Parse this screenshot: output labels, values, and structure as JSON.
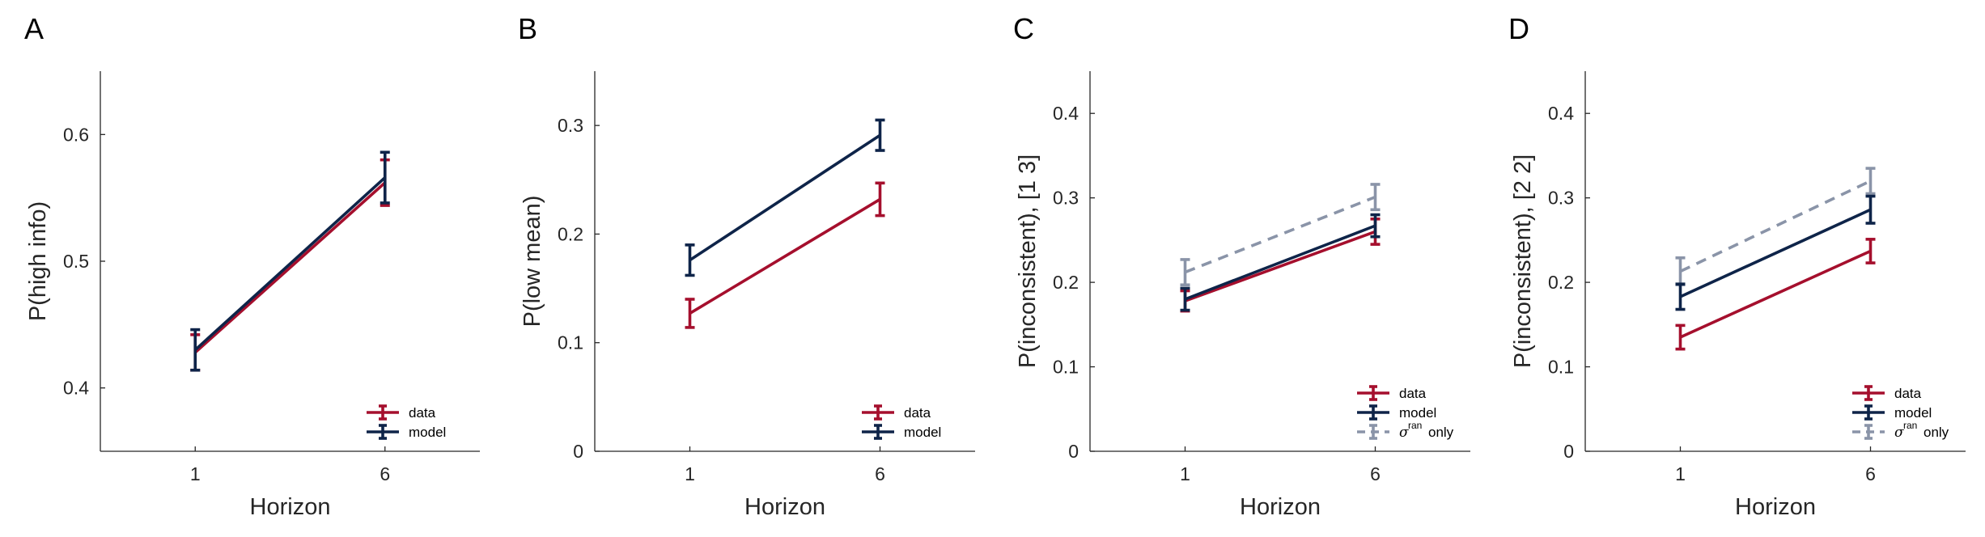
{
  "colors": {
    "data": "#A50F2D",
    "model": "#0E2449",
    "sigma_ran_only": "#8A94A8",
    "axis": "#262626"
  },
  "chart_data": [
    {
      "panel": "A",
      "type": "line",
      "xlabel": "Horizon",
      "ylabel": "P(high info)",
      "x": [
        1,
        6
      ],
      "xlim": [
        -1.5,
        8.5
      ],
      "ylim": [
        0.35,
        0.65
      ],
      "yticks": [
        "0.4",
        "0.5",
        "0.6"
      ],
      "series": [
        {
          "key": "data",
          "name": "data",
          "values": [
            0.428,
            0.562
          ],
          "err": [
            0.014,
            0.018
          ],
          "dashed": false
        },
        {
          "key": "model",
          "name": "model",
          "values": [
            0.43,
            0.566
          ],
          "err": [
            0.016,
            0.02
          ],
          "dashed": false
        }
      ],
      "legend": "bottom-right",
      "grid": false
    },
    {
      "panel": "B",
      "type": "line",
      "xlabel": "Horizon",
      "ylabel": "P(low mean)",
      "x": [
        1,
        6
      ],
      "xlim": [
        -1.5,
        8.5
      ],
      "ylim": [
        0,
        0.35
      ],
      "yticks": [
        "0",
        "0.1",
        "0.2",
        "0.3"
      ],
      "series": [
        {
          "key": "data",
          "name": "data",
          "values": [
            0.127,
            0.232
          ],
          "err": [
            0.013,
            0.015
          ],
          "dashed": false
        },
        {
          "key": "model",
          "name": "model",
          "values": [
            0.176,
            0.291
          ],
          "err": [
            0.014,
            0.014
          ],
          "dashed": false
        }
      ],
      "legend": "bottom-right",
      "grid": false
    },
    {
      "panel": "C",
      "type": "line",
      "xlabel": "Horizon",
      "ylabel": "P(inconsistent), [1 3]",
      "x": [
        1,
        6
      ],
      "xlim": [
        -1.5,
        8.5
      ],
      "ylim": [
        0,
        0.45
      ],
      "yticks": [
        "0",
        "0.1",
        "0.2",
        "0.3",
        "0.4"
      ],
      "series": [
        {
          "key": "data",
          "name": "data",
          "values": [
            0.178,
            0.26
          ],
          "err": [
            0.012,
            0.015
          ],
          "dashed": false
        },
        {
          "key": "model",
          "name": "model",
          "values": [
            0.18,
            0.267
          ],
          "err": [
            0.013,
            0.013
          ],
          "dashed": false
        },
        {
          "key": "sigma_ran_only",
          "name": "only",
          "values": [
            0.212,
            0.301
          ],
          "err": [
            0.015,
            0.015
          ],
          "dashed": true
        }
      ],
      "legend": "bottom-right",
      "grid": false
    },
    {
      "panel": "D",
      "type": "line",
      "xlabel": "Horizon",
      "ylabel": "P(inconsistent), [2 2]",
      "x": [
        1,
        6
      ],
      "xlim": [
        -1.5,
        8.5
      ],
      "ylim": [
        0,
        0.45
      ],
      "yticks": [
        "0",
        "0.1",
        "0.2",
        "0.3",
        "0.4"
      ],
      "series": [
        {
          "key": "data",
          "name": "data",
          "values": [
            0.135,
            0.237
          ],
          "err": [
            0.014,
            0.014
          ],
          "dashed": false
        },
        {
          "key": "model",
          "name": "model",
          "values": [
            0.183,
            0.286
          ],
          "err": [
            0.015,
            0.016
          ],
          "dashed": false
        },
        {
          "key": "sigma_ran_only",
          "name": "only",
          "values": [
            0.213,
            0.32
          ],
          "err": [
            0.016,
            0.015
          ],
          "dashed": true
        }
      ],
      "legend": "bottom-right",
      "grid": false
    }
  ],
  "legend_symbol": {
    "sigma": "σ",
    "sup": "ran"
  }
}
